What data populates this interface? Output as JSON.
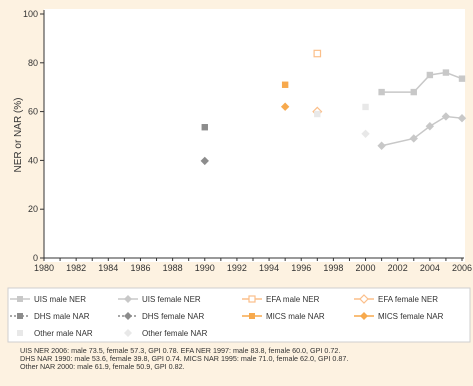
{
  "chart_data": {
    "type": "scatter",
    "title": "",
    "xlabel": "",
    "ylabel": "NER or NAR (%)",
    "xlim": [
      1980,
      2006
    ],
    "ylim": [
      0,
      100
    ],
    "xticks": [
      "1980",
      "1982",
      "1984",
      "1986",
      "1988",
      "1990",
      "1992",
      "1994",
      "1996",
      "1998",
      "2000",
      "2002",
      "2004",
      "2006"
    ],
    "yticks": [
      "0",
      "20",
      "40",
      "60",
      "80",
      "100"
    ],
    "grid": false,
    "legend_position": "bottom",
    "series": [
      {
        "name": "UIS male NER",
        "color": "#c8c8c8",
        "marker": "square",
        "fill": true,
        "line": "solid",
        "points": [
          [
            2001,
            68
          ],
          [
            2003,
            68
          ],
          [
            2004,
            75
          ],
          [
            2005,
            76
          ],
          [
            2006,
            73.5
          ]
        ]
      },
      {
        "name": "UIS female NER",
        "color": "#c8c8c8",
        "marker": "diamond",
        "fill": true,
        "line": "solid",
        "points": [
          [
            2001,
            46
          ],
          [
            2003,
            49
          ],
          [
            2004,
            54
          ],
          [
            2005,
            58
          ],
          [
            2006,
            57.3
          ]
        ]
      },
      {
        "name": "EFA male NER",
        "color": "#fbbf8a",
        "marker": "square",
        "fill": false,
        "line": "solid",
        "points": [
          [
            1997,
            83.8
          ]
        ]
      },
      {
        "name": "EFA female NER",
        "color": "#fbbf8a",
        "marker": "diamond",
        "fill": false,
        "line": "solid",
        "points": [
          [
            1997,
            60
          ]
        ]
      },
      {
        "name": "DHS male NAR",
        "color": "#8c8c8c",
        "marker": "square",
        "fill": true,
        "line": "dotted",
        "points": [
          [
            1990,
            53.6
          ]
        ]
      },
      {
        "name": "DHS female NAR",
        "color": "#8c8c8c",
        "marker": "diamond",
        "fill": true,
        "line": "dotted",
        "points": [
          [
            1990,
            39.8
          ]
        ]
      },
      {
        "name": "MICS male NAR",
        "color": "#f7a94d",
        "marker": "square",
        "fill": true,
        "line": "solid",
        "points": [
          [
            1995,
            71
          ]
        ]
      },
      {
        "name": "MICS female NAR",
        "color": "#f7a94d",
        "marker": "diamond",
        "fill": true,
        "line": "solid",
        "points": [
          [
            1995,
            62
          ]
        ]
      },
      {
        "name": "Other male NAR",
        "color": "#e8e8e8",
        "marker": "square",
        "fill": true,
        "line": "none",
        "points": [
          [
            1997,
            59
          ],
          [
            2000,
            61.9
          ]
        ]
      },
      {
        "name": "Other female NAR",
        "color": "#e8e8e8",
        "marker": "diamond",
        "fill": true,
        "line": "none",
        "points": [
          [
            2000,
            50.9
          ]
        ]
      }
    ],
    "notes": [
      "UIS NER 2006: male 73.5, female 57.3, GPI 0.78. EFA NER 1997: male 83.8, female 60.0, GPI 0.72.",
      "DHS NAR 1990: male 53.6, female 39.8, GPI 0.74. MICS NAR 1995: male 71.0, female 62.0, GPI 0.87.",
      "Other NAR 2000: male 61.9, female 50.9, GPI 0.82."
    ]
  }
}
